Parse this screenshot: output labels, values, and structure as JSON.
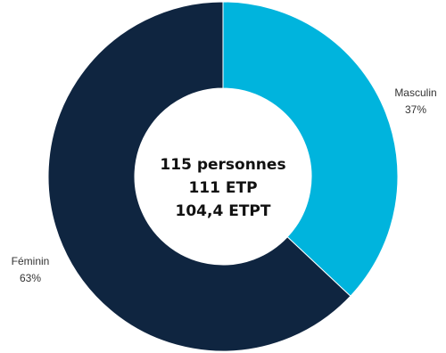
{
  "chart_data": {
    "type": "pie",
    "donut": true,
    "categories": [
      "Masculin",
      "Féminin"
    ],
    "values": [
      37,
      63
    ],
    "value_labels": [
      "37%",
      "63%"
    ],
    "colors": [
      "#00b4dd",
      "#0f2540"
    ],
    "center_lines": [
      "115 personnes",
      "111 ETP",
      "104,4 ETPT"
    ],
    "legend": "none"
  }
}
